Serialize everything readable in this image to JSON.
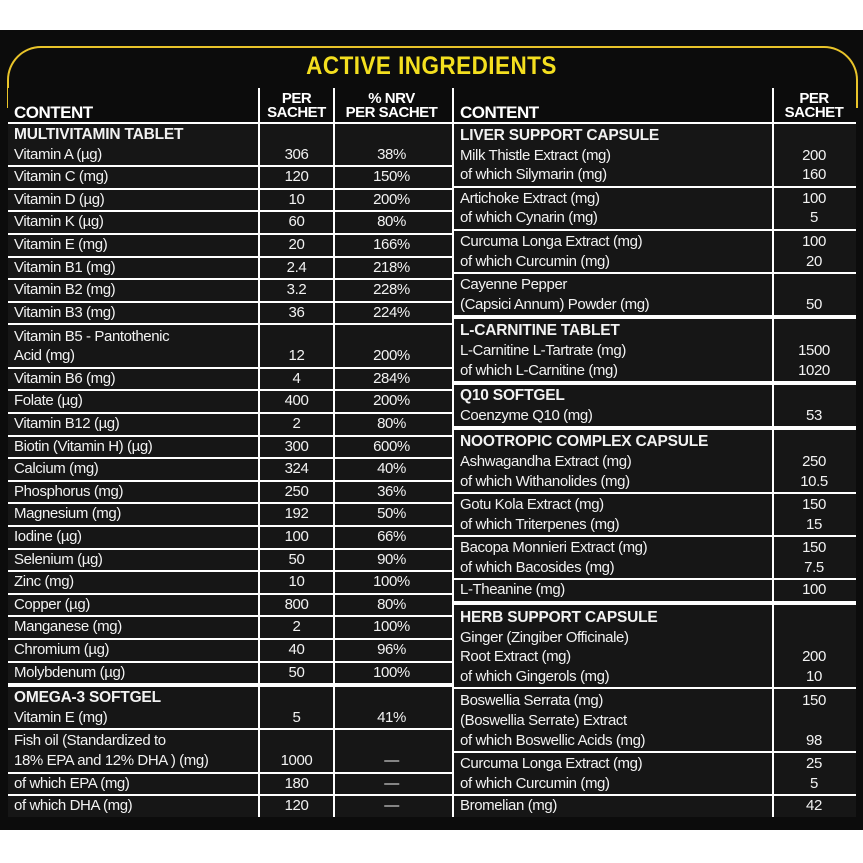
{
  "title": "ACTIVE INGREDIENTS",
  "colors": {
    "title": "#f4df1f",
    "frame": "#e9c42a",
    "background": "#0c0c0c"
  },
  "left": {
    "headers": {
      "content": "CONTENT",
      "per": [
        "PER",
        "SACHET"
      ],
      "nrv": [
        "% NRV",
        "PER SACHET"
      ]
    },
    "rows": [
      {
        "title": "MULTIVITAMIN TABLET",
        "lines": [
          "Vitamin A (µg)"
        ],
        "per": [
          "306"
        ],
        "nrv": [
          "38%"
        ]
      },
      {
        "lines": [
          "Vitamin C (mg)"
        ],
        "per": [
          "120"
        ],
        "nrv": [
          "150%"
        ]
      },
      {
        "lines": [
          "Vitamin D (µg)"
        ],
        "per": [
          "10"
        ],
        "nrv": [
          "200%"
        ]
      },
      {
        "lines": [
          "Vitamin K (µg)"
        ],
        "per": [
          "60"
        ],
        "nrv": [
          "80%"
        ]
      },
      {
        "lines": [
          "Vitamin E (mg)"
        ],
        "per": [
          "20"
        ],
        "nrv": [
          "166%"
        ]
      },
      {
        "lines": [
          "Vitamin B1 (mg)"
        ],
        "per": [
          "2.4"
        ],
        "nrv": [
          "218%"
        ]
      },
      {
        "lines": [
          "Vitamin B2 (mg)"
        ],
        "per": [
          "3.2"
        ],
        "nrv": [
          "228%"
        ]
      },
      {
        "lines": [
          "Vitamin B3 (mg)"
        ],
        "per": [
          "36"
        ],
        "nrv": [
          "224%"
        ]
      },
      {
        "lines": [
          "Vitamin B5 - Pantothenic",
          "Acid (mg)"
        ],
        "per": [
          "",
          "12"
        ],
        "nrv": [
          "",
          "200%"
        ]
      },
      {
        "lines": [
          "Vitamin B6 (mg)"
        ],
        "per": [
          "4"
        ],
        "nrv": [
          "284%"
        ]
      },
      {
        "lines": [
          "Folate (µg)"
        ],
        "per": [
          "400"
        ],
        "nrv": [
          "200%"
        ]
      },
      {
        "lines": [
          "Vitamin B12 (µg)"
        ],
        "per": [
          "2"
        ],
        "nrv": [
          "80%"
        ]
      },
      {
        "lines": [
          "Biotin (Vitamin H) (µg)"
        ],
        "per": [
          "300"
        ],
        "nrv": [
          "600%"
        ]
      },
      {
        "lines": [
          "Calcium (mg)"
        ],
        "per": [
          "324"
        ],
        "nrv": [
          "40%"
        ]
      },
      {
        "lines": [
          "Phosphorus (mg)"
        ],
        "per": [
          "250"
        ],
        "nrv": [
          "36%"
        ]
      },
      {
        "lines": [
          "Magnesium (mg)"
        ],
        "per": [
          "192"
        ],
        "nrv": [
          "50%"
        ]
      },
      {
        "lines": [
          "Iodine (µg)"
        ],
        "per": [
          "100"
        ],
        "nrv": [
          "66%"
        ]
      },
      {
        "lines": [
          "Selenium (µg)"
        ],
        "per": [
          "50"
        ],
        "nrv": [
          "90%"
        ]
      },
      {
        "lines": [
          "Zinc (mg)"
        ],
        "per": [
          "10"
        ],
        "nrv": [
          "100%"
        ]
      },
      {
        "lines": [
          "Copper (µg)"
        ],
        "per": [
          "800"
        ],
        "nrv": [
          "80%"
        ]
      },
      {
        "lines": [
          "Manganese (mg)"
        ],
        "per": [
          "2"
        ],
        "nrv": [
          "100%"
        ]
      },
      {
        "lines": [
          "Chromium (µg)"
        ],
        "per": [
          "40"
        ],
        "nrv": [
          "96%"
        ]
      },
      {
        "lines": [
          "Molybdenum (µg)"
        ],
        "per": [
          "50"
        ],
        "nrv": [
          "100%"
        ]
      },
      {
        "title": "OMEGA-3  SOFTGEL",
        "section": true,
        "lines": [
          "Vitamin E (mg)"
        ],
        "per": [
          "5"
        ],
        "nrv": [
          "41%"
        ]
      },
      {
        "lines": [
          "Fish oil (Standardized to",
          "18% EPA and 12% DHA ) (mg)"
        ],
        "per": [
          "",
          "1000"
        ],
        "nrv": [
          "",
          "—"
        ]
      },
      {
        "lines": [
          "of which EPA (mg)"
        ],
        "per": [
          "180"
        ],
        "nrv": [
          "—"
        ]
      },
      {
        "lines": [
          "of which DHA (mg)"
        ],
        "per": [
          "120"
        ],
        "nrv": [
          "—"
        ]
      }
    ]
  },
  "right": {
    "headers": {
      "content": "CONTENT",
      "per": [
        "PER",
        "SACHET"
      ]
    },
    "rows": [
      {
        "title": "LIVER SUPPORT CAPSULE",
        "lines": [
          "Milk Thistle Extract (mg)",
          "of which Silymarin (mg)"
        ],
        "per": [
          "200",
          "160"
        ]
      },
      {
        "lines": [
          "Artichoke Extract (mg)",
          "of which Cynarin (mg)"
        ],
        "per": [
          "100",
          "5"
        ]
      },
      {
        "lines": [
          "Curcuma Longa Extract (mg)",
          "of which Curcumin (mg)"
        ],
        "per": [
          "100",
          "20"
        ]
      },
      {
        "lines": [
          "Cayenne Pepper",
          "(Capsici Annum) Powder (mg)"
        ],
        "per": [
          "",
          "50"
        ]
      },
      {
        "title": "L-CARNITINE TABLET",
        "section": true,
        "lines": [
          "L-Carnitine L-Tartrate (mg)",
          "of which L-Carnitine (mg)"
        ],
        "per": [
          "1500",
          "1020"
        ]
      },
      {
        "title": "Q10 SOFTGEL",
        "section": true,
        "lines": [
          "Coenzyme Q10 (mg)"
        ],
        "per": [
          "53"
        ]
      },
      {
        "title": "NOOTROPIC COMPLEX CAPSULE",
        "section": true,
        "lines": [
          "Ashwagandha Extract (mg)",
          "of which Withanolides (mg)"
        ],
        "per": [
          "250",
          "10.5"
        ]
      },
      {
        "lines": [
          "Gotu Kola Extract (mg)",
          "of which Triterpenes (mg)"
        ],
        "per": [
          "150",
          "15"
        ]
      },
      {
        "lines": [
          "Bacopa Monnieri Extract (mg)",
          "of which Bacosides (mg)"
        ],
        "per": [
          "150",
          "7.5"
        ]
      },
      {
        "lines": [
          "L-Theanine (mg)"
        ],
        "per": [
          "100"
        ]
      },
      {
        "title": "HERB SUPPORT CAPSULE",
        "section": true,
        "lines": [
          "Ginger (Zingiber Officinale)",
          "Root Extract (mg)",
          "of which Gingerols (mg)"
        ],
        "per": [
          "",
          "200",
          "10"
        ]
      },
      {
        "lines": [
          "Boswellia Serrata (mg)",
          "(Boswellia Serrate) Extract",
          "of which Boswellic Acids (mg)"
        ],
        "per": [
          "150",
          "",
          "98"
        ]
      },
      {
        "lines": [
          "Curcuma Longa Extract (mg)",
          "of which Curcumin (mg)"
        ],
        "per": [
          "25",
          "5"
        ]
      },
      {
        "lines": [
          "Bromelian (mg)"
        ],
        "per": [
          "42"
        ]
      }
    ]
  }
}
